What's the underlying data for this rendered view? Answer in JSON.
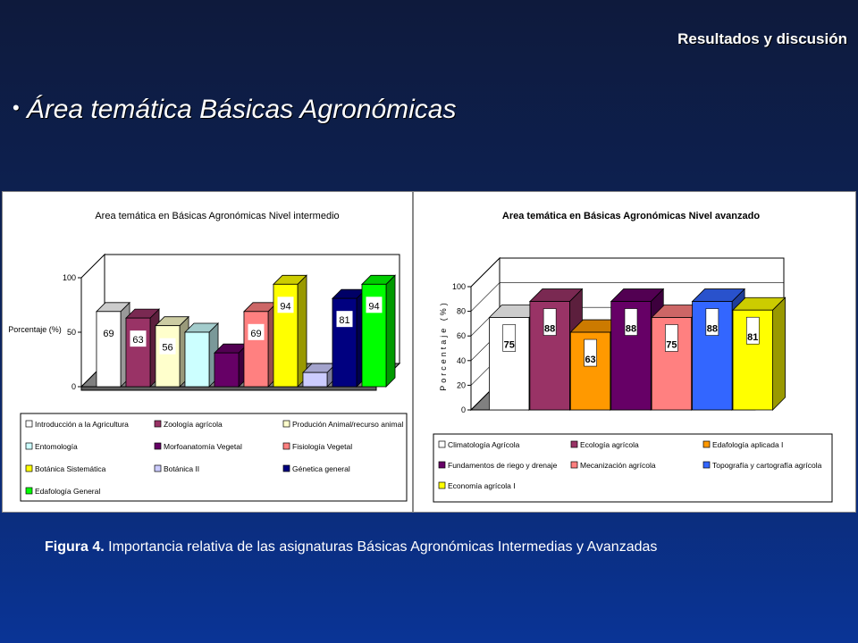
{
  "header": {
    "section": "Resultados y discusión"
  },
  "topic": {
    "bullet": "•",
    "title": "Área temática Básicas Agronómicas"
  },
  "caption": {
    "label": "Figura 4.",
    "text": " Importancia relativa de las asignaturas Básicas Agronómicas Intermedias y Avanzadas"
  },
  "chart_data": [
    {
      "type": "bar",
      "title": "Area temática en Básicas Agronómicas Nivel intermedio",
      "ylabel": "Porcentaje (%)",
      "xlabel": "",
      "ylim": [
        0,
        100
      ],
      "yticks": [
        "0",
        "50",
        "100"
      ],
      "legend_position": "bottom",
      "series": [
        {
          "name": "Introducción a la Agricultura",
          "value": 69,
          "label": "69",
          "color": "#ffffff"
        },
        {
          "name": "Zoología agrícola",
          "value": 63,
          "label": "63",
          "color": "#993366"
        },
        {
          "name": "Produción Animal/recurso animal",
          "value": 56,
          "label": "56",
          "color": "#ffffcc"
        },
        {
          "name": "Entomología",
          "value": 50,
          "label": "",
          "color": "#ccffff"
        },
        {
          "name": "Morfoanatomía Vegetal",
          "value": 31,
          "label": "",
          "color": "#660066"
        },
        {
          "name": "Fisiología Vegetal",
          "value": 69,
          "label": "69",
          "color": "#ff8080"
        },
        {
          "name": "Botánica Sistemática",
          "value": 94,
          "label": "94",
          "color": "#ffff00"
        },
        {
          "name": "Botánica II",
          "value": 13,
          "label": "",
          "color": "#ccccff"
        },
        {
          "name": "Génetica general",
          "value": 81,
          "label": "81",
          "color": "#000080"
        },
        {
          "name": "Edafología General",
          "value": 94,
          "label": "94",
          "color": "#00ff00"
        }
      ]
    },
    {
      "type": "bar",
      "title": "Area temática en Básicas Agronómicas Nivel avanzado",
      "ylabel": "Porcentaje (%)",
      "xlabel": "",
      "ylim": [
        0,
        100
      ],
      "yticks": [
        "0",
        "20",
        "40",
        "60",
        "80",
        "100"
      ],
      "legend_position": "bottom",
      "series": [
        {
          "name": "Climatología Agrícola",
          "value": 75,
          "label": "75",
          "color": "#ffffff"
        },
        {
          "name": "Ecología agrícola",
          "value": 88,
          "label": "88",
          "color": "#993366"
        },
        {
          "name": "Edafología aplicada I",
          "value": 63,
          "label": "63",
          "color": "#ff9900"
        },
        {
          "name": "Fundamentos de riego y drenaje",
          "value": 88,
          "label": "88",
          "color": "#660066"
        },
        {
          "name": "Mecanización agrícola",
          "value": 75,
          "label": "75",
          "color": "#ff8080"
        },
        {
          "name": "Topografía y cartografía agrícola",
          "value": 88,
          "label": "88",
          "color": "#3366ff"
        },
        {
          "name": "Economía agrícola I",
          "value": 81,
          "label": "81",
          "color": "#ffff00"
        }
      ]
    }
  ]
}
